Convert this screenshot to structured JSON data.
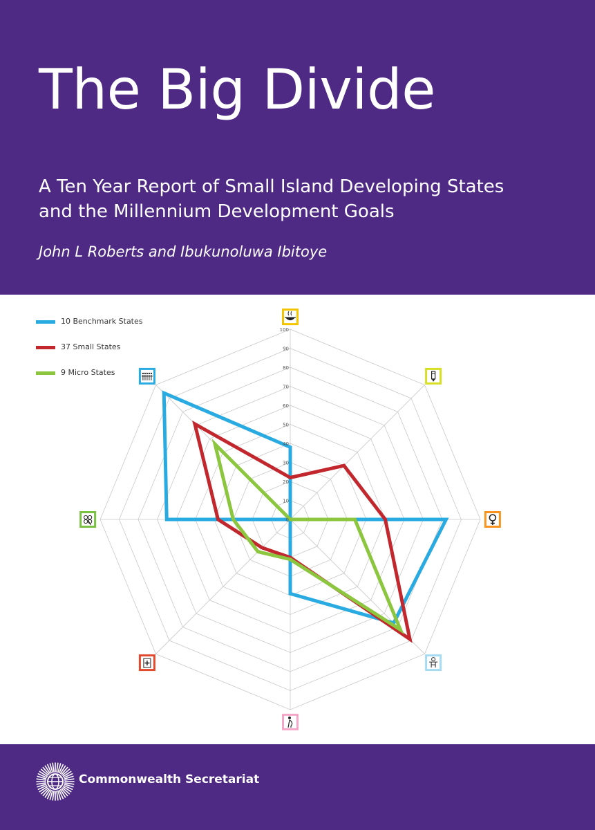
{
  "cover": {
    "title": "The Big Divide",
    "subtitle_lines": [
      "A Ten Year Report of Small Island Developing States",
      "and the Millennium Development Goals"
    ],
    "authors": "John L Roberts and Ibukunoluwa Ibitoye",
    "publisher": "Commonwealth Secretariat"
  },
  "colors": {
    "band": "#4e2a84",
    "benchmark": "#29abe2",
    "small": "#c1272d",
    "micro": "#8cc63f"
  },
  "chart_data": {
    "type": "radar",
    "title": "",
    "scale_ticks": [
      "0",
      "10",
      "20",
      "30",
      "40",
      "50",
      "60",
      "70",
      "80",
      "90",
      "100"
    ],
    "range": [
      0,
      100
    ],
    "grid": true,
    "legend_position": "top-left",
    "axes": [
      {
        "icon": "hunger-bowl-icon",
        "color": "#f2c500"
      },
      {
        "icon": "education-pencil-icon",
        "color": "#d7df23"
      },
      {
        "icon": "gender-equality-icon",
        "color": "#f7941d"
      },
      {
        "icon": "child-health-icon",
        "color": "#a5dcf3"
      },
      {
        "icon": "maternal-health-icon",
        "color": "#f4a6c8"
      },
      {
        "icon": "medicine-hiv-icon",
        "color": "#e2492f"
      },
      {
        "icon": "environment-clover-icon",
        "color": "#7ac143"
      },
      {
        "icon": "global-partnership-icon",
        "color": "#29abe2"
      }
    ],
    "series": [
      {
        "name": "10 Benchmark States",
        "color": "#29abe2",
        "values": [
          38,
          0,
          82,
          77,
          39,
          0,
          65,
          94
        ]
      },
      {
        "name": "37 Small States",
        "color": "#c1272d",
        "values": [
          22,
          40,
          50,
          89,
          20,
          21,
          38,
          71
        ]
      },
      {
        "name": "9 Micro States",
        "color": "#8cc63f",
        "values": [
          0,
          0,
          34,
          82,
          21,
          24,
          30,
          56
        ]
      }
    ]
  }
}
